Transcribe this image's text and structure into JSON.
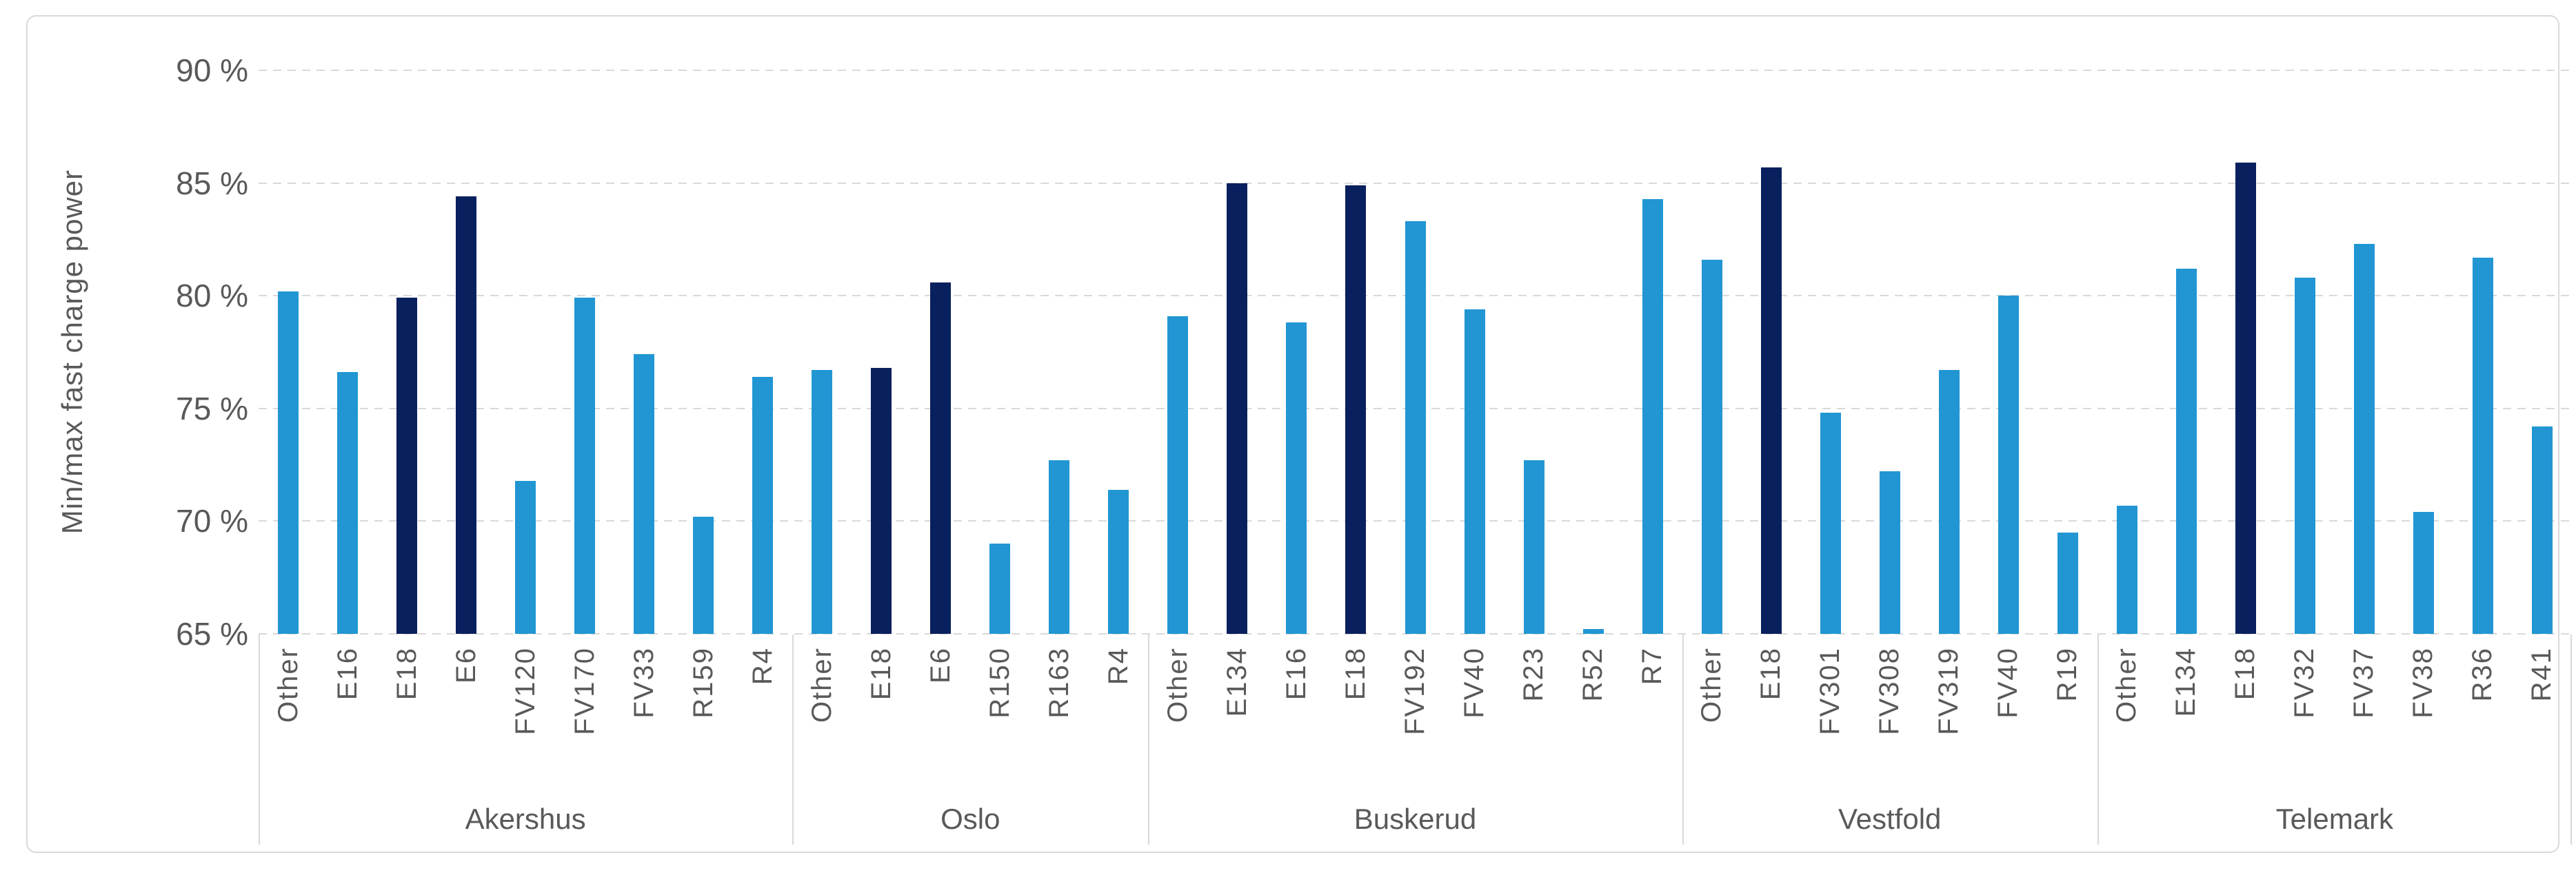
{
  "chart_data": {
    "type": "bar",
    "title": "",
    "ylabel": "Min/max fast charge power",
    "xlabel": "",
    "ylim": [
      65,
      90
    ],
    "grid": true,
    "legend": "none",
    "yticks": [
      {
        "value": 90,
        "label": "90 %"
      },
      {
        "value": 85,
        "label": "85 %"
      },
      {
        "value": 80,
        "label": "80 %"
      },
      {
        "value": 75,
        "label": "75 %"
      },
      {
        "value": 70,
        "label": "70 %"
      },
      {
        "value": 65,
        "label": "65 %"
      }
    ],
    "colors": {
      "bar_light": "#2196D3",
      "bar_dark": "#09205F",
      "grid": "#D9D9D9",
      "text": "#595959",
      "border": "#D9D9D9"
    },
    "groups": [
      {
        "region": "Akershus",
        "bars": [
          {
            "label": "Other",
            "value": 80.2,
            "color": "light"
          },
          {
            "label": "E16",
            "value": 76.6,
            "color": "light"
          },
          {
            "label": "E18",
            "value": 79.9,
            "color": "dark"
          },
          {
            "label": "E6",
            "value": 84.4,
            "color": "dark"
          },
          {
            "label": "FV120",
            "value": 71.8,
            "color": "light"
          },
          {
            "label": "FV170",
            "value": 79.9,
            "color": "light"
          },
          {
            "label": "FV33",
            "value": 77.4,
            "color": "light"
          },
          {
            "label": "R159",
            "value": 70.2,
            "color": "light"
          },
          {
            "label": "R4",
            "value": 76.4,
            "color": "light"
          }
        ]
      },
      {
        "region": "Oslo",
        "bars": [
          {
            "label": "Other",
            "value": 76.7,
            "color": "light"
          },
          {
            "label": "E18",
            "value": 76.8,
            "color": "dark"
          },
          {
            "label": "E6",
            "value": 80.6,
            "color": "dark"
          },
          {
            "label": "R150",
            "value": 69.0,
            "color": "light"
          },
          {
            "label": "R163",
            "value": 72.7,
            "color": "light"
          },
          {
            "label": "R4",
            "value": 71.4,
            "color": "light"
          }
        ]
      },
      {
        "region": "Buskerud",
        "bars": [
          {
            "label": "Other",
            "value": 79.1,
            "color": "light"
          },
          {
            "label": "E134",
            "value": 85.0,
            "color": "dark"
          },
          {
            "label": "E16",
            "value": 78.8,
            "color": "light"
          },
          {
            "label": "E18",
            "value": 84.9,
            "color": "dark"
          },
          {
            "label": "FV192",
            "value": 83.3,
            "color": "light"
          },
          {
            "label": "FV40",
            "value": 79.4,
            "color": "light"
          },
          {
            "label": "R23",
            "value": 72.7,
            "color": "light"
          },
          {
            "label": "R52",
            "value": 65.2,
            "color": "light"
          },
          {
            "label": "R7",
            "value": 84.3,
            "color": "light"
          }
        ]
      },
      {
        "region": "Vestfold",
        "bars": [
          {
            "label": "Other",
            "value": 81.6,
            "color": "light"
          },
          {
            "label": "E18",
            "value": 85.7,
            "color": "dark"
          },
          {
            "label": "FV301",
            "value": 74.8,
            "color": "light"
          },
          {
            "label": "FV308",
            "value": 72.2,
            "color": "light"
          },
          {
            "label": "FV319",
            "value": 76.7,
            "color": "light"
          },
          {
            "label": "FV40",
            "value": 80.0,
            "color": "light"
          },
          {
            "label": "R19",
            "value": 69.5,
            "color": "light"
          }
        ]
      },
      {
        "region": "Telemark",
        "bars": [
          {
            "label": "Other",
            "value": 70.7,
            "color": "light"
          },
          {
            "label": "E134",
            "value": 81.2,
            "color": "light"
          },
          {
            "label": "E18",
            "value": 85.9,
            "color": "dark"
          },
          {
            "label": "FV32",
            "value": 80.8,
            "color": "light"
          },
          {
            "label": "FV37",
            "value": 82.3,
            "color": "light"
          },
          {
            "label": "FV38",
            "value": 70.4,
            "color": "light"
          },
          {
            "label": "R36",
            "value": 81.7,
            "color": "light"
          },
          {
            "label": "R41",
            "value": 74.2,
            "color": "light"
          }
        ]
      }
    ]
  }
}
